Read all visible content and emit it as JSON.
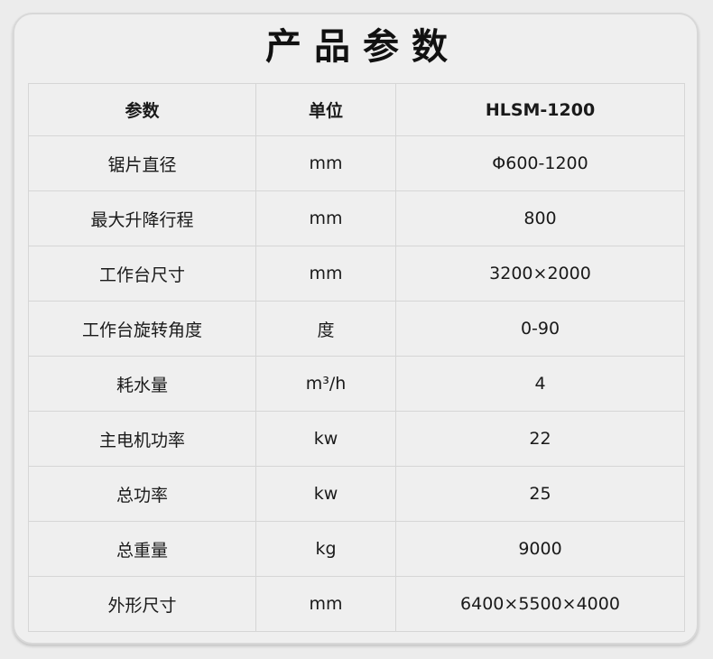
{
  "title": "产品参数",
  "table": {
    "headers": [
      "参数",
      "单位",
      "HLSM-1200"
    ],
    "rows": [
      [
        "锯片直径",
        "mm",
        "Φ600-1200"
      ],
      [
        "最大升降行程",
        "mm",
        "800"
      ],
      [
        "工作台尺寸",
        "mm",
        "3200×2000"
      ],
      [
        "工作台旋转角度",
        "度",
        "0-90"
      ],
      [
        "耗水量",
        "m³/h",
        "4"
      ],
      [
        "主电机功率",
        "kw",
        "22"
      ],
      [
        "总功率",
        "kw",
        "25"
      ],
      [
        "总重量",
        "kg",
        "9000"
      ],
      [
        "外形尺寸",
        "mm",
        "6400×5500×4000"
      ]
    ]
  }
}
